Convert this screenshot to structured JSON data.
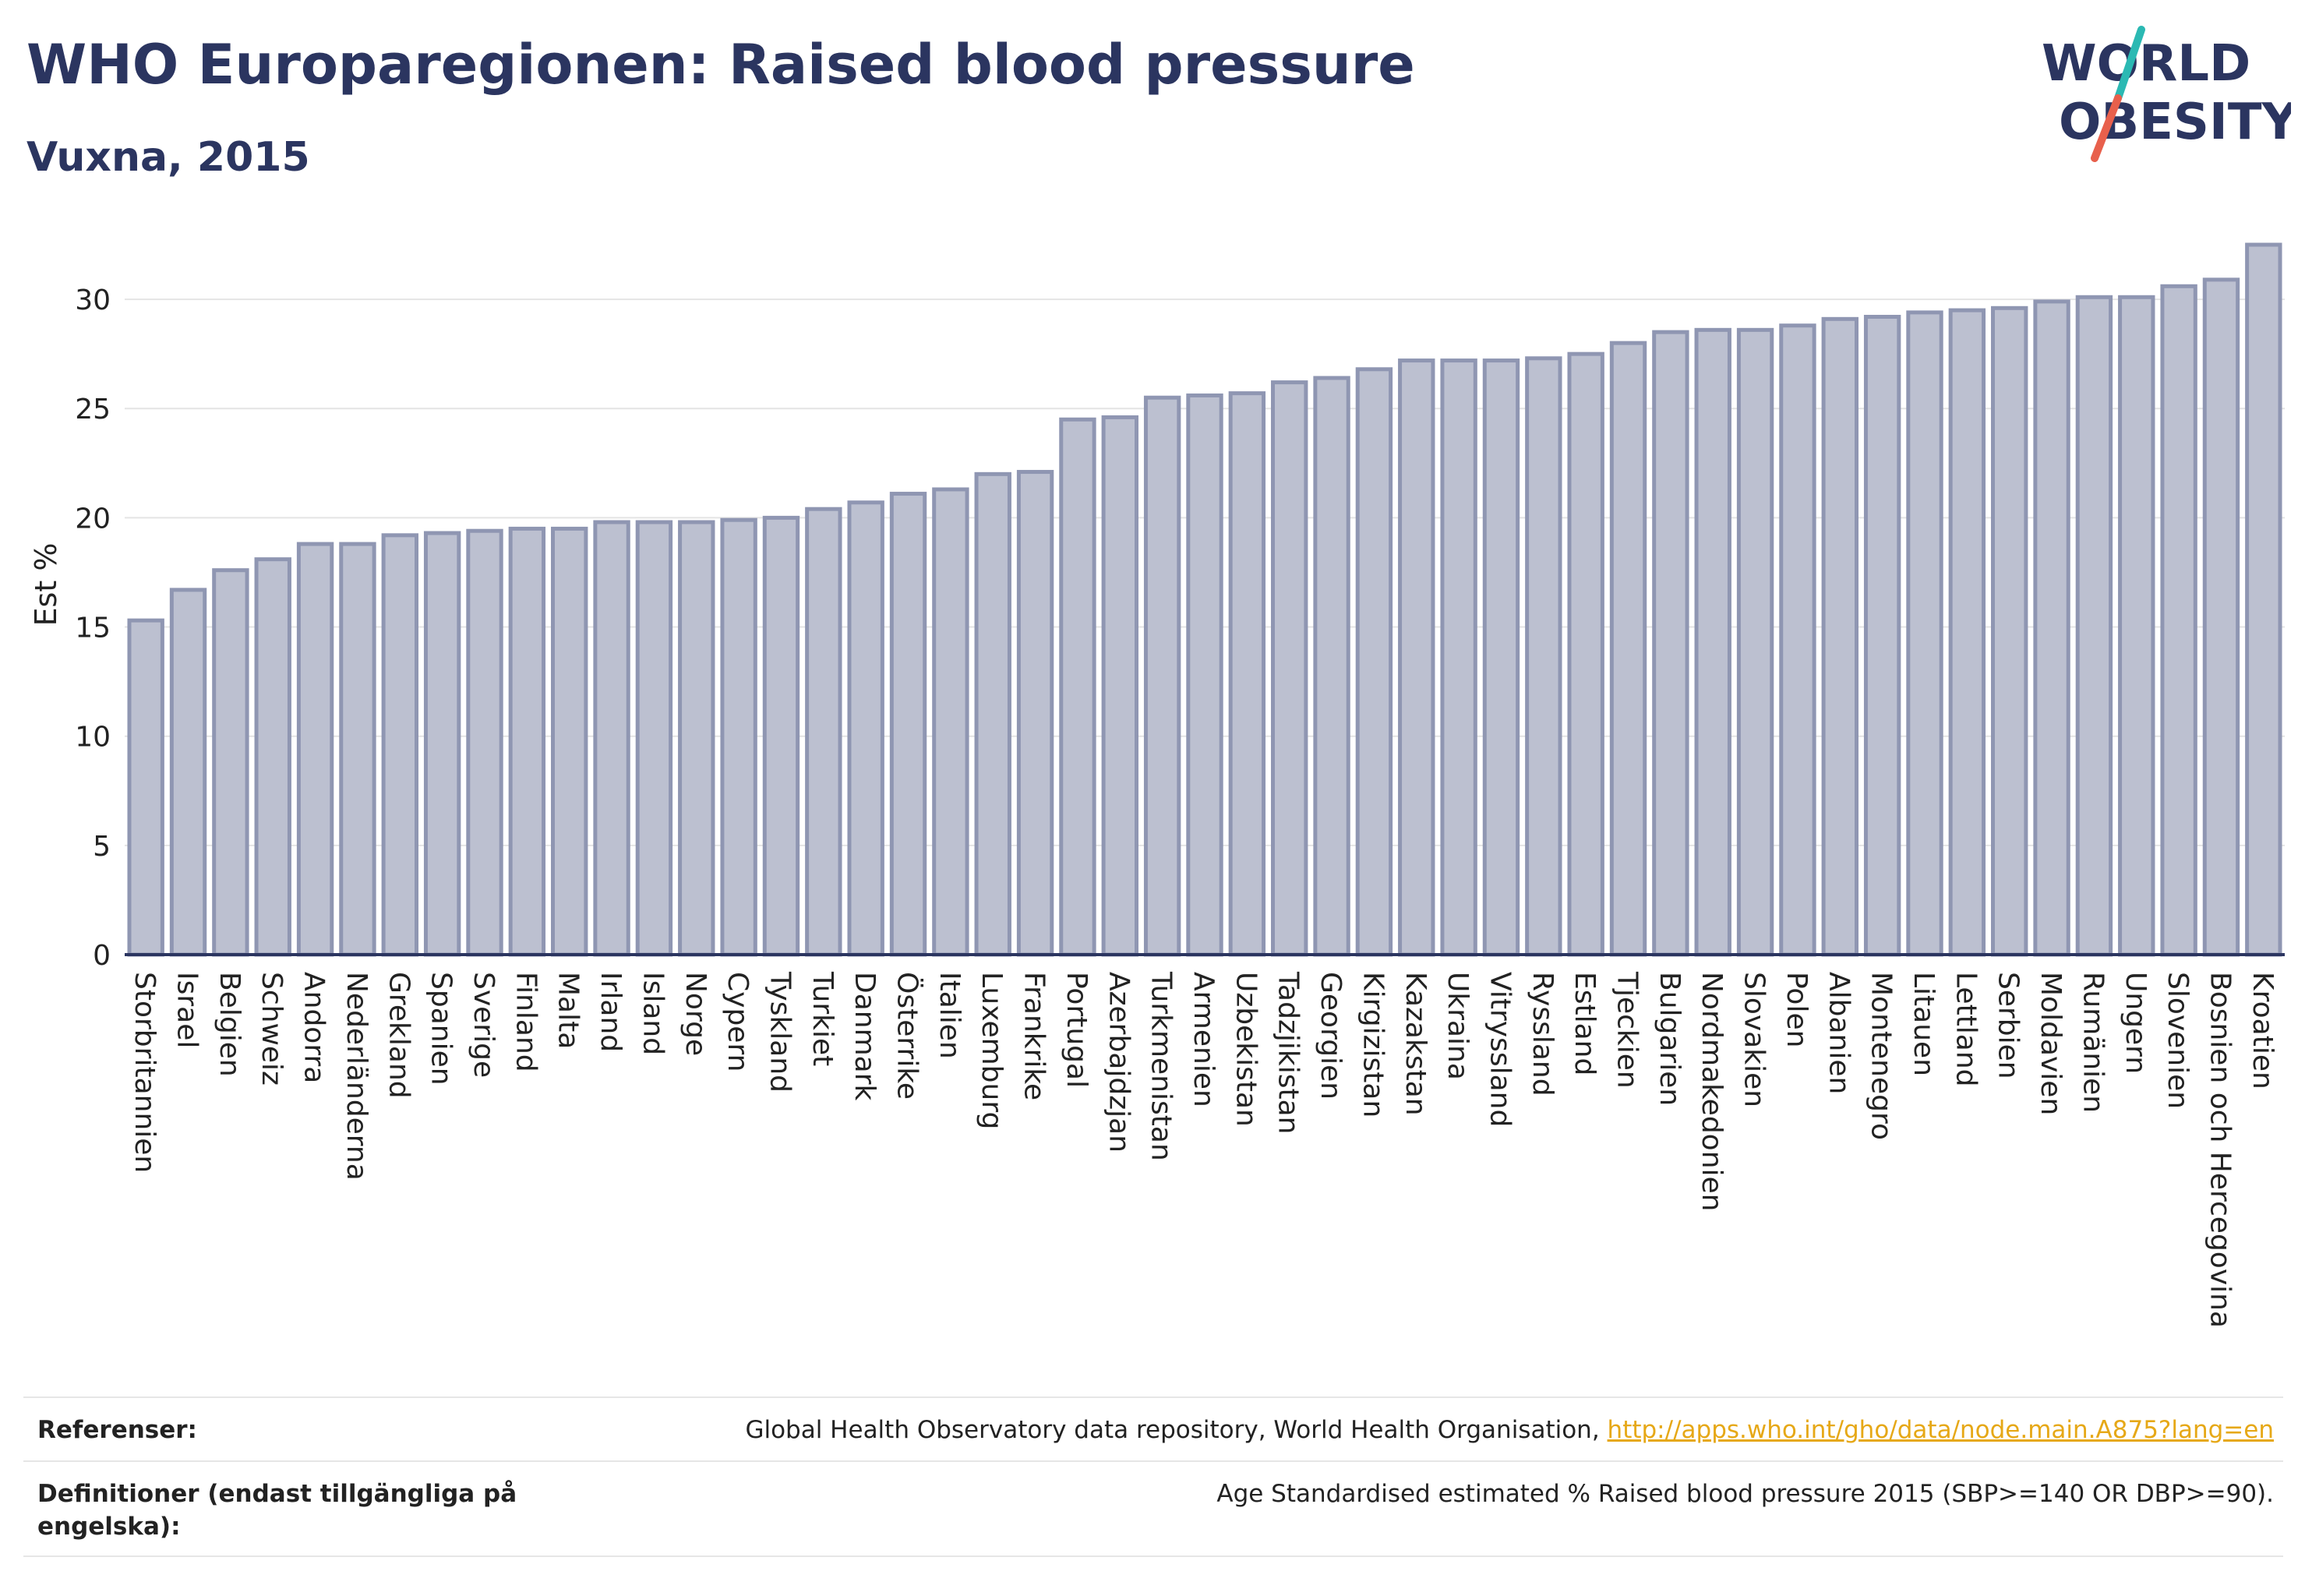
{
  "header": {
    "title": "WHO Europaregionen: Raised blood pressure",
    "subtitle": "Vuxna, 2015"
  },
  "logo": {
    "line1": "WORLD",
    "line2": "OBESITY",
    "text_color": "#2b3560",
    "slash_colors": [
      "#2bb9b3",
      "#e8604c"
    ]
  },
  "colors": {
    "bar_fill": "#bcc0d0",
    "bar_stroke": "#8f96b2",
    "title": "#2b3560",
    "link": "#e6a817"
  },
  "chart_data": {
    "type": "bar",
    "ylabel": "Est %",
    "xlabel": "",
    "ylim": [
      0,
      33
    ],
    "yticks": [
      0,
      5,
      10,
      15,
      20,
      25,
      30
    ],
    "grid": true,
    "categories": [
      "Storbritannien",
      "Israel",
      "Belgien",
      "Schweiz",
      "Andorra",
      "Nederländerna",
      "Grekland",
      "Spanien",
      "Sverige",
      "Finland",
      "Malta",
      "Irland",
      "Island",
      "Norge",
      "Cypern",
      "Tyskland",
      "Turkiet",
      "Danmark",
      "Österrike",
      "Italien",
      "Luxemburg",
      "Frankrike",
      "Portugal",
      "Azerbajdzjan",
      "Turkmenistan",
      "Armenien",
      "Uzbekistan",
      "Tadzjikistan",
      "Georgien",
      "Kirgizistan",
      "Kazakstan",
      "Ukraina",
      "Vitryssland",
      "Ryssland",
      "Estland",
      "Tjeckien",
      "Bulgarien",
      "Nordmakedonien",
      "Slovakien",
      "Polen",
      "Albanien",
      "Montenegro",
      "Litauen",
      "Lettland",
      "Serbien",
      "Moldavien",
      "Rumänien",
      "Ungern",
      "Slovenien",
      "Bosnien och Hercegovina",
      "Kroatien"
    ],
    "values": [
      15.3,
      16.7,
      17.6,
      18.1,
      18.8,
      18.8,
      19.2,
      19.3,
      19.4,
      19.5,
      19.5,
      19.8,
      19.8,
      19.8,
      19.9,
      20.0,
      20.4,
      20.7,
      21.1,
      21.3,
      22.0,
      22.1,
      24.5,
      24.6,
      25.5,
      25.6,
      25.7,
      26.2,
      26.4,
      26.8,
      27.2,
      27.2,
      27.2,
      27.3,
      27.5,
      28.0,
      28.5,
      28.6,
      28.6,
      28.8,
      29.1,
      29.2,
      29.4,
      29.5,
      29.6,
      29.9,
      30.1,
      30.1,
      30.6,
      30.9,
      32.5
    ]
  },
  "footer": {
    "references_label": "Referenser:",
    "references_text": "Global Health Observatory data repository, World Health Organisation, ",
    "references_link": "http://apps.who.int/gho/data/node.main.A875?lang=en",
    "definitions_label": "Definitioner (endast tillgängliga på engelska):",
    "definitions_text": "Age Standardised estimated % Raised blood pressure 2015 (SBP>=140 OR DBP>=90)."
  }
}
